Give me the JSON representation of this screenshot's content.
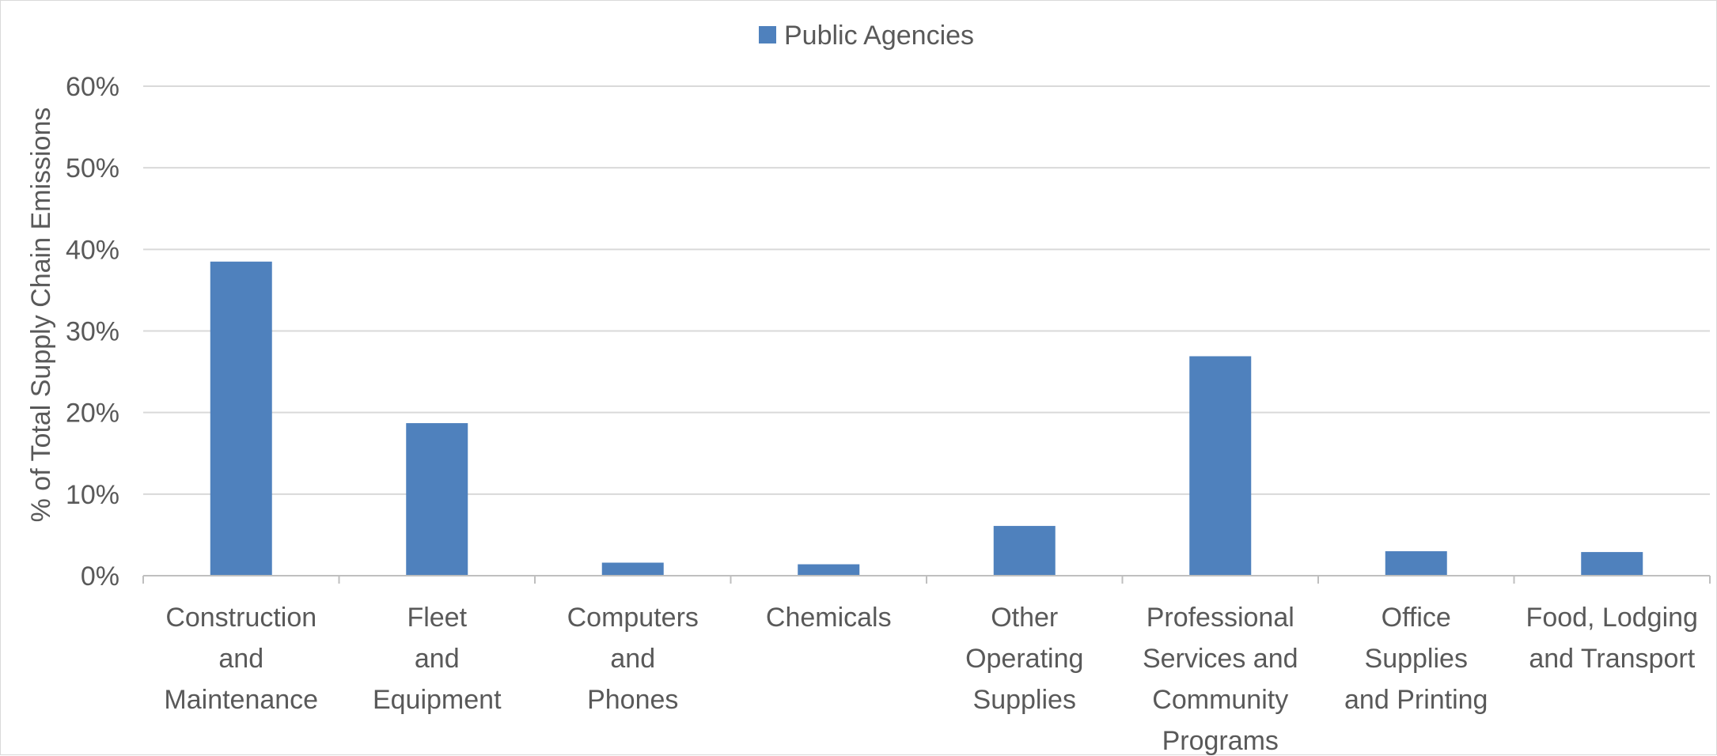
{
  "chart_data": {
    "type": "bar",
    "categories": [
      [
        "Construction",
        "and",
        "Maintenance"
      ],
      [
        "Fleet",
        "and",
        "Equipment"
      ],
      [
        "Computers",
        "and",
        "Phones"
      ],
      [
        "Chemicals"
      ],
      [
        "Other",
        "Operating",
        "Supplies"
      ],
      [
        "Professional",
        "Services and",
        "Community",
        "Programs"
      ],
      [
        "Office",
        "Supplies",
        "and Printing"
      ],
      [
        "Food, Lodging",
        "and Transport"
      ]
    ],
    "series": [
      {
        "name": "Public Agencies",
        "color": "#4f81bd",
        "values": [
          38.5,
          18.7,
          1.6,
          1.4,
          6.1,
          26.9,
          3.0,
          2.9
        ]
      }
    ],
    "ylabel": "% of Total Supply Chain Emissions",
    "ylim": [
      0,
      60
    ],
    "yticks": [
      "0%",
      "10%",
      "20%",
      "30%",
      "40%",
      "50%",
      "60%"
    ],
    "ytick_values": [
      0,
      10,
      20,
      30,
      40,
      50,
      60
    ],
    "grid": true,
    "legend_position": "top"
  }
}
